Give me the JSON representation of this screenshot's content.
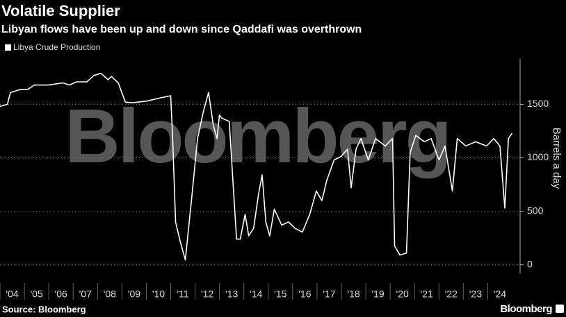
{
  "chart_data": {
    "type": "line",
    "title": "Volatile Supplier",
    "subtitle": "Libyan flows have been up and down since Qaddafi was overthrown",
    "watermark": "Bloomberg",
    "y_label": "Barrels a day",
    "source": "Source: Bloomberg",
    "logo": "Bloomberg",
    "grid": true,
    "xlim": [
      2004,
      2025.1
    ],
    "ylim": [
      -80,
      1950
    ],
    "yticks": [
      0,
      500,
      1000,
      1500
    ],
    "xticks": [
      {
        "value": 2004,
        "label": "'04"
      },
      {
        "value": 2005,
        "label": "'05"
      },
      {
        "value": 2006,
        "label": "'06"
      },
      {
        "value": 2007,
        "label": "'07"
      },
      {
        "value": 2008,
        "label": "'08"
      },
      {
        "value": 2009,
        "label": "'09"
      },
      {
        "value": 2010,
        "label": "'10"
      },
      {
        "value": 2011,
        "label": "'11"
      },
      {
        "value": 2012,
        "label": "'12"
      },
      {
        "value": 2013,
        "label": "'13"
      },
      {
        "value": 2014,
        "label": "'14"
      },
      {
        "value": 2015,
        "label": "'15"
      },
      {
        "value": 2016,
        "label": "'16"
      },
      {
        "value": 2017,
        "label": "'17"
      },
      {
        "value": 2018,
        "label": "'18"
      },
      {
        "value": 2019,
        "label": "'19"
      },
      {
        "value": 2020,
        "label": "'20"
      },
      {
        "value": 2021,
        "label": "'21"
      },
      {
        "value": 2022,
        "label": "'22"
      },
      {
        "value": 2023,
        "label": "'23"
      },
      {
        "value": 2024,
        "label": "'24"
      }
    ],
    "x": [
      2004.0,
      2004.3,
      2004.43,
      2004.85,
      2005.14,
      2005.4,
      2006.0,
      2006.57,
      2006.85,
      2007.14,
      2007.56,
      2007.85,
      2008.14,
      2008.43,
      2008.57,
      2008.85,
      2009.14,
      2009.43,
      2010.0,
      2010.57,
      2011.0,
      2011.08,
      2011.2,
      2011.4,
      2011.6,
      2011.85,
      2012.1,
      2012.35,
      2012.55,
      2012.75,
      2012.9,
      2013.0,
      2013.1,
      2013.4,
      2013.55,
      2013.7,
      2013.85,
      2014.05,
      2014.2,
      2014.4,
      2014.6,
      2014.75,
      2014.9,
      2015.06,
      2015.25,
      2015.55,
      2015.83,
      2016.1,
      2016.4,
      2016.7,
      2016.97,
      2017.2,
      2017.4,
      2017.7,
      2017.97,
      2018.25,
      2018.4,
      2018.6,
      2018.8,
      2019.1,
      2019.4,
      2019.8,
      2020.1,
      2020.18,
      2020.4,
      2020.67,
      2020.82,
      2021.05,
      2021.4,
      2021.68,
      2022.0,
      2022.25,
      2022.55,
      2022.75,
      2023.1,
      2023.5,
      2023.95,
      2024.25,
      2024.5,
      2024.7,
      2024.85,
      2025.0
    ],
    "series": [
      {
        "name": "Libya Crude Production",
        "color": "#ffffff",
        "values": [
          1480,
          1500,
          1610,
          1640,
          1640,
          1680,
          1680,
          1700,
          1680,
          1710,
          1710,
          1770,
          1790,
          1730,
          1760,
          1700,
          1520,
          1515,
          1530,
          1560,
          1580,
          1180,
          400,
          210,
          45,
          600,
          1180,
          1440,
          1610,
          1300,
          1180,
          1400,
          1370,
          1340,
          790,
          240,
          240,
          470,
          270,
          340,
          660,
          840,
          400,
          270,
          520,
          370,
          400,
          340,
          305,
          470,
          690,
          600,
          790,
          980,
          1010,
          1080,
          720,
          1080,
          1180,
          980,
          1180,
          1110,
          1180,
          175,
          90,
          110,
          1050,
          1210,
          1150,
          1180,
          980,
          1110,
          690,
          1180,
          1110,
          1150,
          1110,
          1180,
          1110,
          530,
          1180,
          1230
        ]
      }
    ]
  }
}
